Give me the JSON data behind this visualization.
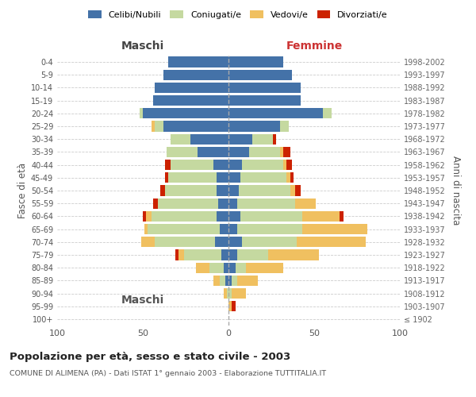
{
  "age_groups": [
    "100+",
    "95-99",
    "90-94",
    "85-89",
    "80-84",
    "75-79",
    "70-74",
    "65-69",
    "60-64",
    "55-59",
    "50-54",
    "45-49",
    "40-44",
    "35-39",
    "30-34",
    "25-29",
    "20-24",
    "15-19",
    "10-14",
    "5-9",
    "0-4"
  ],
  "birth_years": [
    "≤ 1902",
    "1903-1907",
    "1908-1912",
    "1913-1917",
    "1918-1922",
    "1923-1927",
    "1928-1932",
    "1933-1937",
    "1938-1942",
    "1943-1947",
    "1948-1952",
    "1953-1957",
    "1958-1962",
    "1963-1967",
    "1968-1972",
    "1973-1977",
    "1978-1982",
    "1983-1987",
    "1988-1992",
    "1993-1997",
    "1998-2002"
  ],
  "maschi_celibi": [
    0,
    0,
    0,
    2,
    3,
    4,
    8,
    5,
    7,
    6,
    7,
    7,
    9,
    18,
    22,
    38,
    50,
    44,
    43,
    38,
    35
  ],
  "maschi_coniugati": [
    0,
    0,
    1,
    3,
    8,
    22,
    35,
    42,
    38,
    35,
    30,
    28,
    25,
    18,
    12,
    5,
    2,
    0,
    0,
    0,
    0
  ],
  "maschi_vedovi": [
    0,
    0,
    2,
    4,
    8,
    3,
    8,
    2,
    3,
    0,
    0,
    0,
    0,
    0,
    0,
    2,
    0,
    0,
    0,
    0,
    0
  ],
  "maschi_divorziati": [
    0,
    0,
    0,
    0,
    0,
    2,
    0,
    0,
    2,
    3,
    3,
    2,
    3,
    0,
    0,
    0,
    0,
    0,
    0,
    0,
    0
  ],
  "femmine_nubili": [
    0,
    0,
    0,
    2,
    4,
    5,
    8,
    5,
    7,
    5,
    6,
    7,
    8,
    12,
    14,
    30,
    55,
    42,
    42,
    37,
    32
  ],
  "femmine_coniugate": [
    0,
    0,
    2,
    3,
    6,
    18,
    32,
    38,
    36,
    34,
    30,
    27,
    24,
    18,
    12,
    5,
    5,
    0,
    0,
    0,
    0
  ],
  "femmine_vedove": [
    0,
    2,
    8,
    12,
    22,
    30,
    40,
    38,
    22,
    12,
    3,
    2,
    2,
    2,
    0,
    0,
    0,
    0,
    0,
    0,
    0
  ],
  "femmine_divorziate": [
    0,
    2,
    0,
    0,
    0,
    0,
    0,
    0,
    2,
    0,
    3,
    2,
    3,
    4,
    2,
    0,
    0,
    0,
    0,
    0,
    0
  ],
  "color_celibi": "#4472a8",
  "color_coniugati": "#c5d9a0",
  "color_vedovi": "#f0c060",
  "color_divorziati": "#cc2200",
  "xlim": 100,
  "title": "Popolazione per età, sesso e stato civile - 2003",
  "subtitle": "COMUNE DI ALIMENA (PA) - Dati ISTAT 1° gennaio 2003 - Elaborazione TUTTITALIA.IT",
  "legend_labels": [
    "Celibi/Nubili",
    "Coniugati/e",
    "Vedovi/e",
    "Divorziati/e"
  ],
  "bg_color": "#ffffff",
  "grid_color": "#cccccc",
  "maschi_label": "Maschi",
  "femmine_label": "Femmine",
  "ylabel_left": "Fasce di età",
  "ylabel_right": "Anni di nascita"
}
